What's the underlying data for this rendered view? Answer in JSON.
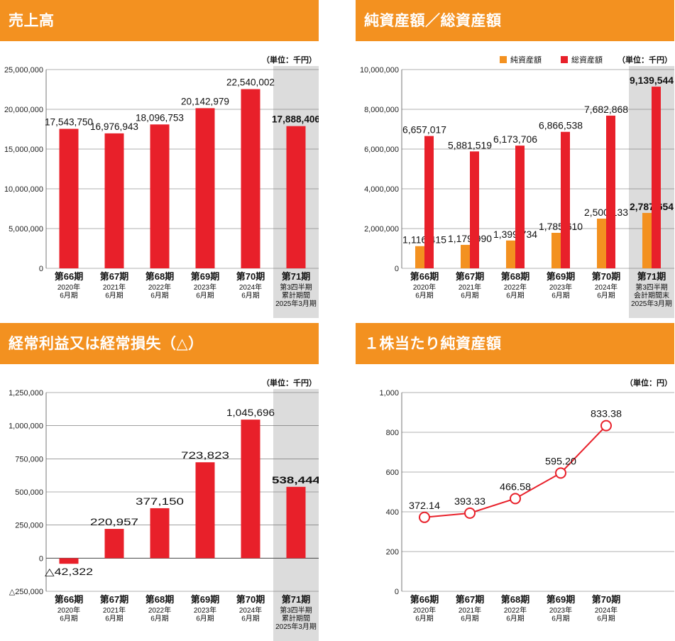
{
  "chart_data": [
    {
      "id": "sales",
      "type": "bar",
      "title": "売上高",
      "unit": "（単位：千円）",
      "categories": [
        "第66期",
        "第67期",
        "第68期",
        "第69期",
        "第70期",
        "第71期"
      ],
      "sublabels": [
        [
          "2020年",
          "6月期"
        ],
        [
          "2021年",
          "6月期"
        ],
        [
          "2022年",
          "6月期"
        ],
        [
          "2023年",
          "6月期"
        ],
        [
          "2024年",
          "6月期"
        ],
        [
          "第3四半期",
          "累計期間",
          "2025年3月期"
        ]
      ],
      "series": [
        {
          "values": [
            17543750,
            16976943,
            18096753,
            20142979,
            22540002,
            17888406
          ]
        }
      ],
      "data_labels": [
        "17,543,750",
        "16,976,943",
        "18,096,753",
        "20,142,979",
        "22,540,002",
        "17,888,406"
      ],
      "ylim": [
        0,
        25000000
      ],
      "yticks": [
        0,
        5000000,
        10000000,
        15000000,
        20000000,
        25000000
      ],
      "ytick_labels": [
        "0",
        "5,000,000",
        "10,000,000",
        "15,000,000",
        "20,000,000",
        "25,000,000"
      ],
      "highlight_last": true,
      "colors": {
        "bar": "#e8202a",
        "highlight": "#dcdcdc"
      }
    },
    {
      "id": "assets",
      "type": "bar",
      "title": "純資産額／総資産額",
      "unit": "（単位：千円）",
      "legend": [
        "純資産額",
        "総資産額"
      ],
      "legend_position": "top-right",
      "categories": [
        "第66期",
        "第67期",
        "第68期",
        "第69期",
        "第70期",
        "第71期"
      ],
      "sublabels": [
        [
          "2020年",
          "6月期"
        ],
        [
          "2021年",
          "6月期"
        ],
        [
          "2022年",
          "6月期"
        ],
        [
          "2023年",
          "6月期"
        ],
        [
          "2024年",
          "6月期"
        ],
        [
          "第3四半期",
          "会計期間末",
          "2025年3月期"
        ]
      ],
      "series": [
        {
          "name": "純資産額",
          "values": [
            1116415,
            1179990,
            1399734,
            1785610,
            2500133,
            2787654
          ],
          "labels": [
            "1,116,415",
            "1,179,990",
            "1,399,734",
            "1,785,610",
            "2,500,133",
            "2,787,654"
          ],
          "color": "#f39120"
        },
        {
          "name": "総資産額",
          "values": [
            6657017,
            5881519,
            6173706,
            6866538,
            7682868,
            9139544
          ],
          "labels": [
            "6,657,017",
            "5,881,519",
            "6,173,706",
            "6,866,538",
            "7,682,868",
            "9,139,544"
          ],
          "color": "#e8202a"
        }
      ],
      "ylim": [
        0,
        10000000
      ],
      "yticks": [
        0,
        2000000,
        4000000,
        6000000,
        8000000,
        10000000
      ],
      "ytick_labels": [
        "0",
        "2,000,000",
        "4,000,000",
        "6,000,000",
        "8,000,000",
        "10,000,000"
      ],
      "highlight_last": true,
      "colors": {
        "highlight": "#dcdcdc"
      }
    },
    {
      "id": "profit",
      "type": "bar",
      "title": "経常利益又は経常損失（△）",
      "unit": "（単位：千円）",
      "categories": [
        "第66期",
        "第67期",
        "第68期",
        "第69期",
        "第70期",
        "第71期"
      ],
      "sublabels": [
        [
          "2020年",
          "6月期"
        ],
        [
          "2021年",
          "6月期"
        ],
        [
          "2022年",
          "6月期"
        ],
        [
          "2023年",
          "6月期"
        ],
        [
          "2024年",
          "6月期"
        ],
        [
          "第3四半期",
          "累計期間",
          "2025年3月期"
        ]
      ],
      "series": [
        {
          "values": [
            -42322,
            220957,
            377150,
            723823,
            1045696,
            538444
          ]
        }
      ],
      "data_labels": [
        "△42,322",
        "220,957",
        "377,150",
        "723,823",
        "1,045,696",
        "538,444"
      ],
      "ylim": [
        -250000,
        1250000
      ],
      "yticks": [
        -250000,
        0,
        250000,
        500000,
        750000,
        1000000,
        1250000
      ],
      "ytick_labels": [
        "△250,000",
        "0",
        "250,000",
        "500,000",
        "750,000",
        "1,000,000",
        "1,250,000"
      ],
      "highlight_last": true,
      "colors": {
        "bar": "#e8202a",
        "highlight": "#dcdcdc"
      }
    },
    {
      "id": "bps",
      "type": "line",
      "title": "１株当たり純資産額",
      "unit": "（単位：円）",
      "categories": [
        "第66期",
        "第67期",
        "第68期",
        "第69期",
        "第70期"
      ],
      "sublabels": [
        [
          "2020年",
          "6月期"
        ],
        [
          "2021年",
          "6月期"
        ],
        [
          "2022年",
          "6月期"
        ],
        [
          "2023年",
          "6月期"
        ],
        [
          "2024年",
          "6月期"
        ]
      ],
      "slots": 6,
      "series": [
        {
          "values": [
            372.14,
            393.33,
            466.58,
            595.2,
            833.38
          ]
        }
      ],
      "data_labels": [
        "372.14",
        "393.33",
        "466.58",
        "595.20",
        "833.38"
      ],
      "ylim": [
        0,
        1000
      ],
      "yticks": [
        0,
        200,
        400,
        600,
        800,
        1000
      ],
      "ytick_labels": [
        "0",
        "200",
        "400",
        "600",
        "800",
        "1,000"
      ],
      "colors": {
        "line": "#e8202a",
        "marker_fill": "#ffffff"
      }
    }
  ]
}
